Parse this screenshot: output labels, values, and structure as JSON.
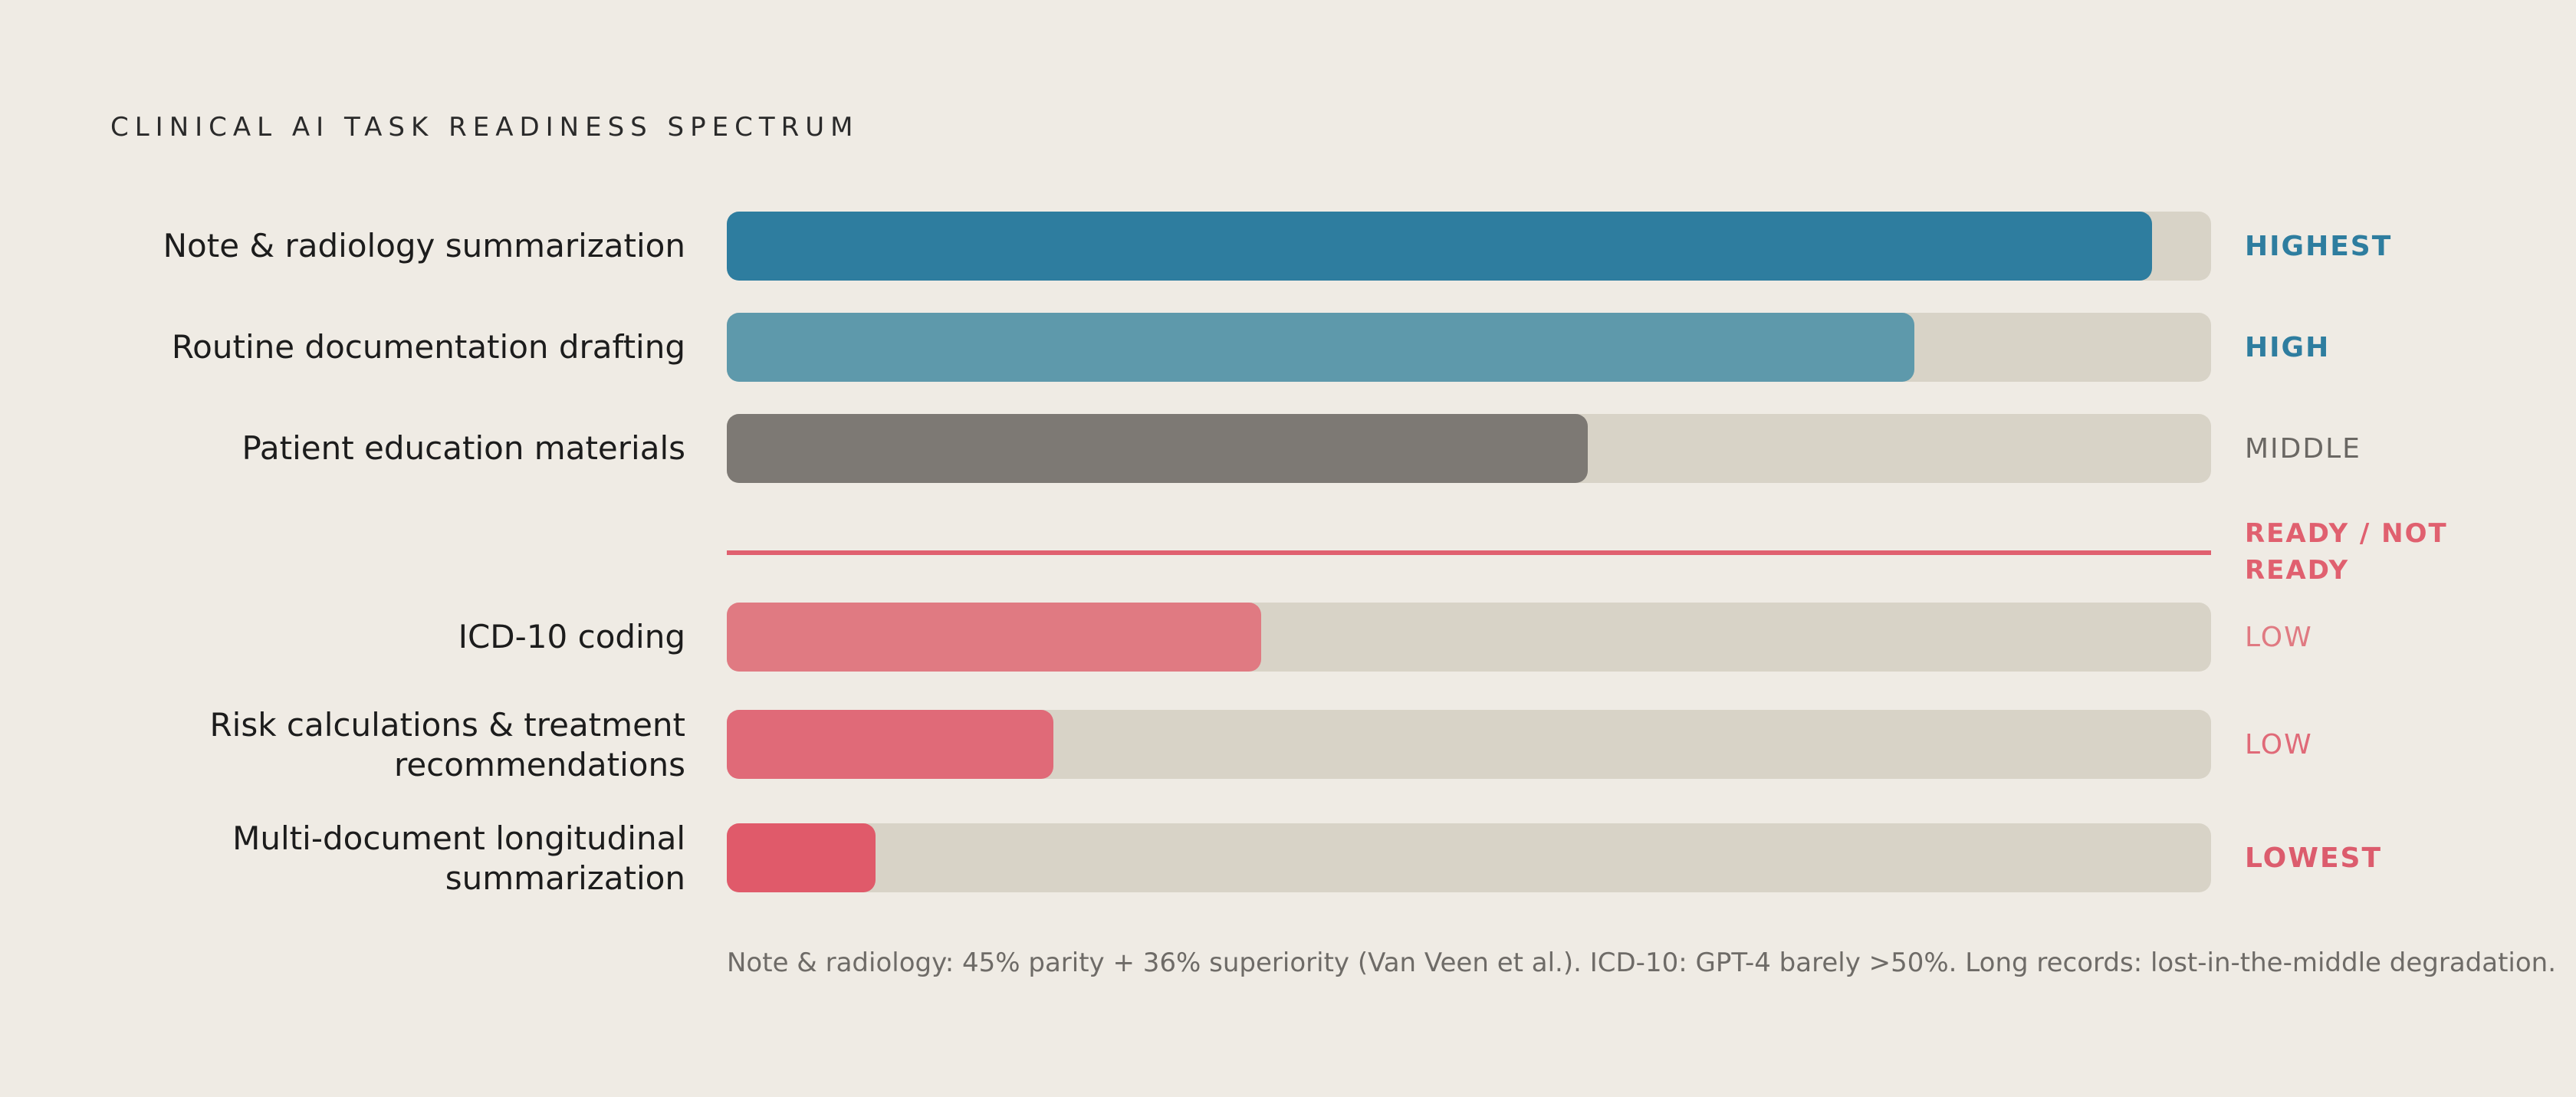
{
  "chart_data": {
    "type": "bar",
    "orientation": "horizontal",
    "title": "CLINICAL AI TASK READINESS SPECTRUM",
    "xlim": [
      0,
      100
    ],
    "categories": [
      "Note & radiology summarization",
      "Routine documentation drafting",
      "Patient education materials",
      "ICD-10 coding",
      "Risk calculations & treatment recommendations",
      "Multi-document longitudinal summarization"
    ],
    "values": [
      96,
      80,
      58,
      36,
      22,
      10
    ],
    "bars": [
      {
        "label": "Note & radiology summarization",
        "value": 96,
        "level": "HIGHEST",
        "color": "#2e7d9f",
        "level_color": "#2e7d9f",
        "level_bold": true
      },
      {
        "label": "Routine documentation drafting",
        "value": 80,
        "level": "HIGH",
        "color": "#5e99ab",
        "level_color": "#2e7d9f",
        "level_bold": true
      },
      {
        "label": "Patient education materials",
        "value": 58,
        "level": "MIDDLE",
        "color": "#7d7974",
        "level_color": "#6a6763",
        "level_bold": false
      },
      {
        "label": "ICD-10 coding",
        "value": 36,
        "level": "LOW",
        "color": "#e07a82",
        "level_color": "#e07a82",
        "level_bold": false
      },
      {
        "label": "Risk calculations & treatment recommendations",
        "value": 22,
        "level": "LOW",
        "color": "#e06a78",
        "level_color": "#e06a78",
        "level_bold": false
      },
      {
        "label": "Multi-document longitudinal summarization",
        "value": 10,
        "level": "LOWEST",
        "color": "#e05a6a",
        "level_color": "#dc5c6d",
        "level_bold": true
      }
    ],
    "threshold": {
      "label": "READY / NOT READY",
      "color": "#e0606f"
    },
    "track_color": "#d8d3c7",
    "grid": false,
    "legend": "none",
    "footnote": "Note & radiology: 45% parity + 36% superiority (Van Veen et al.). ICD-10: GPT-4 barely >50%. Long records: lost-in-the-middle degradation."
  }
}
